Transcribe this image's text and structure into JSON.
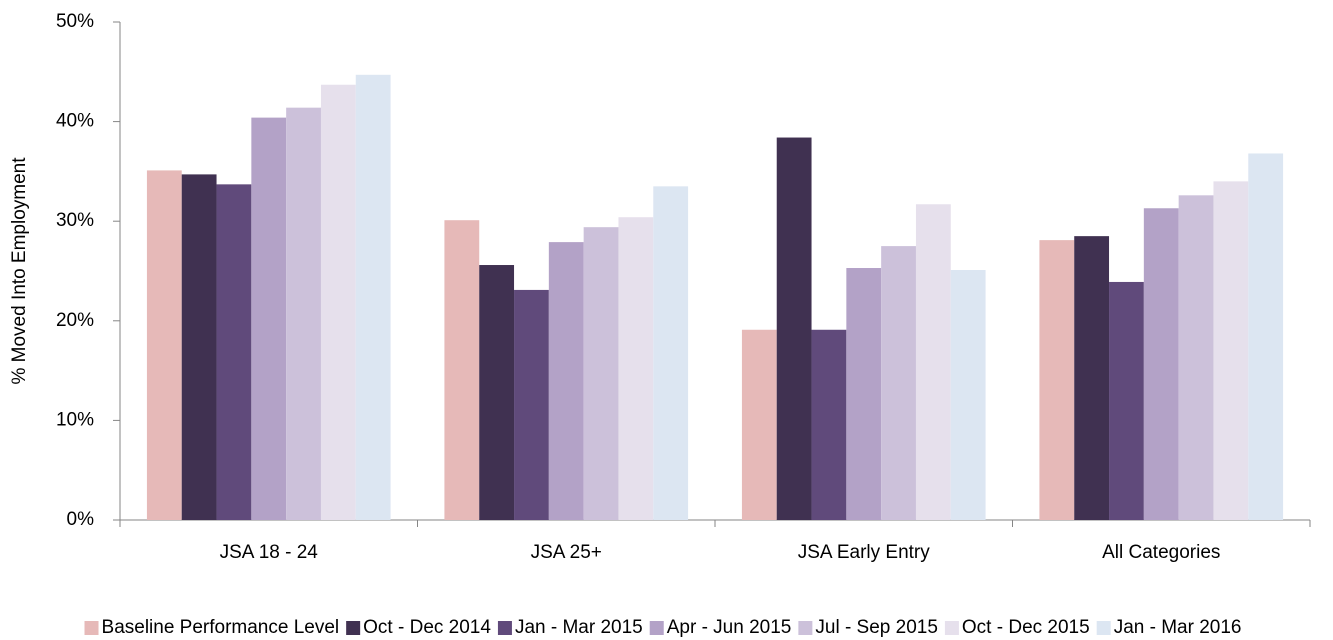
{
  "chart_data": {
    "type": "bar",
    "y_label": "% Moved Into Employment",
    "categories": [
      "JSA 18 - 24",
      "JSA 25+",
      "JSA Early Entry",
      "All Categories"
    ],
    "series": [
      {
        "name": "Baseline Performance Level",
        "color": "#e6b9b8",
        "values": [
          35.1,
          30.1,
          19.1,
          28.1
        ]
      },
      {
        "name": "Oct - Dec 2014",
        "color": "#403151",
        "values": [
          34.7,
          25.6,
          38.4,
          28.5
        ]
      },
      {
        "name": "Jan - Mar 2015",
        "color": "#604a7b",
        "values": [
          33.7,
          23.1,
          19.1,
          23.9
        ]
      },
      {
        "name": "Apr - Jun 2015",
        "color": "#b3a2c7",
        "values": [
          40.4,
          27.9,
          25.3,
          31.3
        ]
      },
      {
        "name": "Jul - Sep 2015",
        "color": "#ccc1da",
        "values": [
          41.4,
          29.4,
          27.5,
          32.6
        ]
      },
      {
        "name": "Oct - Dec 2015",
        "color": "#e6e0ec",
        "values": [
          43.7,
          30.4,
          31.7,
          34.0
        ]
      },
      {
        "name": "Jan - Mar 2016",
        "color": "#dce6f2",
        "values": [
          44.7,
          33.5,
          25.1,
          36.8
        ]
      }
    ],
    "ylim": [
      0,
      50
    ],
    "yticks": [
      {
        "value": 0,
        "label": "0%"
      },
      {
        "value": 10,
        "label": "10%"
      },
      {
        "value": 20,
        "label": "20%"
      },
      {
        "value": 30,
        "label": "30%"
      },
      {
        "value": 40,
        "label": "40%"
      },
      {
        "value": 50,
        "label": "50%"
      }
    ],
    "grid": false,
    "legend": "bottom"
  }
}
